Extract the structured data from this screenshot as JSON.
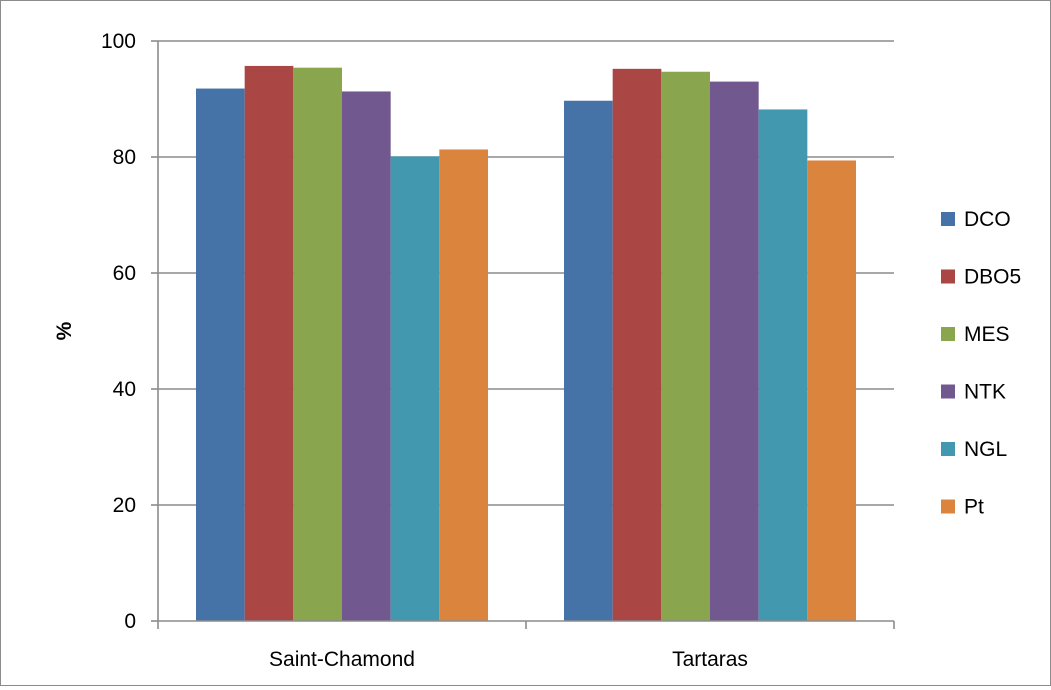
{
  "chart_data": {
    "type": "bar",
    "title": "",
    "xlabel": "",
    "ylabel": "%",
    "ylim": [
      0,
      100
    ],
    "yticks": [
      0,
      20,
      40,
      60,
      80,
      100
    ],
    "grid": true,
    "legend_position": "right",
    "categories": [
      "Saint-Chamond",
      "Tartaras"
    ],
    "series": [
      {
        "name": "DCO",
        "color": "#4572a7",
        "values": [
          91.8,
          89.7
        ]
      },
      {
        "name": "DBO5",
        "color": "#aa4643",
        "values": [
          95.7,
          95.2
        ]
      },
      {
        "name": "MES",
        "color": "#89a54e",
        "values": [
          95.4,
          94.7
        ]
      },
      {
        "name": "NTK",
        "color": "#71588f",
        "values": [
          91.3,
          93.0
        ]
      },
      {
        "name": "NGL",
        "color": "#4198af",
        "values": [
          80.1,
          88.2
        ]
      },
      {
        "name": "Pt",
        "color": "#db843d",
        "values": [
          81.3,
          79.4
        ]
      }
    ]
  }
}
